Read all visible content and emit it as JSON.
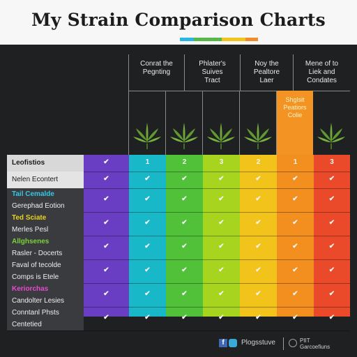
{
  "title": "My Strain Comparison Charts",
  "accent_colors": [
    "#2bb4e6",
    "#57b84a",
    "#f2c41b",
    "#f28c2a"
  ],
  "column_headers": [
    "Conrat the\nPegnting",
    "Phlater's\nSuives\nTract",
    "Noy the\nPealtore\nLaer",
    "Mene of to\nLiek and\nCondates"
  ],
  "highlight_label": "Shglsit\nPeatiors\nColie",
  "column_colors": [
    "#6a3ec2",
    "#1f8ee8",
    "#19b8c8",
    "#52c13a",
    "#a7d41f",
    "#f2c41b",
    "#f38f1f",
    "#ea4a2a"
  ],
  "rows": [
    {
      "lines": [
        "Leofistios"
      ],
      "label_bg": "#d8d8d8",
      "label_color": "#1a1a1a",
      "marks": [
        "✔",
        "1",
        "2",
        "3",
        "2",
        "1",
        "3"
      ]
    },
    {
      "lines": [
        "Nelen Econtert"
      ],
      "label_bg": "#e4e4e4",
      "label_color": "#1a1a1a",
      "marks": [
        "✔",
        "✔",
        "✔",
        "✔",
        "✔",
        "✔",
        "✔"
      ]
    },
    {
      "lines": [
        "Tail Cemalde",
        "Gerephad Eotion"
      ],
      "label_bg": "#3a3b3e",
      "label_color": "#eeeeee",
      "first_color": "#35c6e8",
      "marks": [
        "✔",
        "✔",
        "✔",
        "✔",
        "✔",
        "✔",
        "✔"
      ]
    },
    {
      "lines": [
        "Ted Sciate",
        "Merles Pesl"
      ],
      "label_bg": "#3a3b3e",
      "label_color": "#eeeeee",
      "first_color": "#e8d31f",
      "marks": [
        "✔",
        "✔",
        "✔",
        "✔",
        "✔",
        "✔",
        "✔"
      ]
    },
    {
      "lines": [
        "Allghsenes",
        "Rasler - Docerts"
      ],
      "label_bg": "#3a3b3e",
      "label_color": "#eeeeee",
      "first_color": "#7bd23a",
      "marks": [
        "✔",
        "✔",
        "✔",
        "✔",
        "✔",
        "✔",
        "✔"
      ]
    },
    {
      "lines": [
        "Faval of tecolde",
        "Comps is Etele"
      ],
      "label_bg": "#3a3b3e",
      "label_color": "#eeeeee",
      "marks": [
        "✔",
        "✔",
        "✔",
        "✔",
        "✔",
        "✔",
        "✔"
      ]
    },
    {
      "lines": [
        "Keriorchas",
        "Candolter Lesies"
      ],
      "label_bg": "#3a3b3e",
      "label_color": "#eeeeee",
      "first_color": "#e84ad0",
      "marks": [
        "✔",
        "✔",
        "✔",
        "✔",
        "✔",
        "✔",
        "✔"
      ]
    },
    {
      "lines": [
        "Conntanl Phsts",
        "Centetied"
      ],
      "label_bg": "#3a3b3e",
      "label_color": "#eeeeee",
      "marks": [
        "✔",
        "✔",
        "✔",
        "✔",
        "✔",
        "✔",
        "✔"
      ]
    }
  ],
  "footer": {
    "fb_letter": "f",
    "brand_a": "Plogsstuve",
    "brand_b": "PIIT\nGarcoefiuns"
  }
}
